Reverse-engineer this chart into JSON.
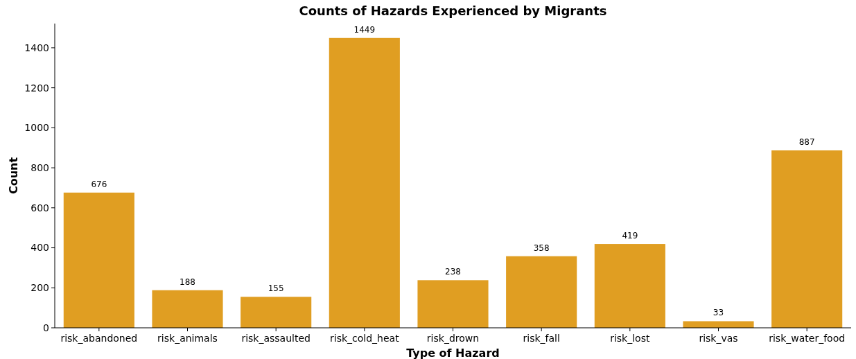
{
  "chart_data": {
    "type": "bar",
    "title": "Counts of Hazards Experienced by Migrants",
    "xlabel": "Type of Hazard",
    "ylabel": "Count",
    "categories": [
      "risk_abandoned",
      "risk_animals",
      "risk_assaulted",
      "risk_cold_heat",
      "risk_drown",
      "risk_fall",
      "risk_lost",
      "risk_vas",
      "risk_water_food"
    ],
    "values": [
      676,
      188,
      155,
      1449,
      238,
      358,
      419,
      33,
      887
    ],
    "color": "#e09e22",
    "ylim": [
      0,
      1521
    ],
    "yticks": [
      0,
      200,
      400,
      600,
      800,
      1000,
      1200,
      1400
    ],
    "grid": false,
    "data_labels": true
  }
}
